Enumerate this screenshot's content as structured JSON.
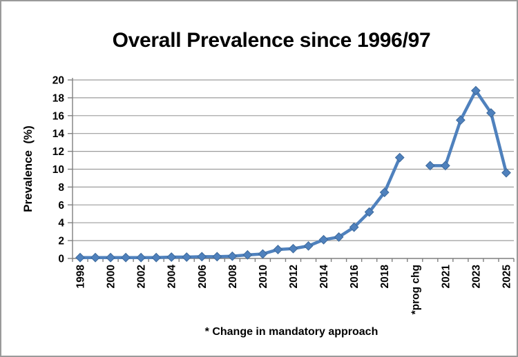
{
  "frame": {
    "background": "#ffffff",
    "border_color": "#9a9a9a"
  },
  "chart_data": {
    "type": "line",
    "title": "Overall Prevalence since 1996/97",
    "ylabel": "Prevalence  (%)",
    "xlabel": "",
    "footnote": "* Change in mandatory approach",
    "ylim": [
      0,
      20
    ],
    "ytick_step": 2,
    "ytick_labels": [
      "0",
      "2",
      "4",
      "6",
      "8",
      "10",
      "12",
      "14",
      "16",
      "18",
      "20"
    ],
    "grid": true,
    "legend": "none",
    "label_interval": 2,
    "categories": [
      "1998",
      "1999",
      "2000",
      "2001",
      "2002",
      "2003",
      "2004",
      "2005",
      "2006",
      "2007",
      "2008",
      "2009",
      "2010",
      "2011",
      "2012",
      "2013",
      "2014",
      "2015",
      "2016",
      "2017",
      "2018",
      "2019",
      "*prog chg",
      "2020",
      "2021",
      "2022",
      "2023",
      "2024",
      "2025"
    ],
    "visible_x_labels": [
      "1998",
      "2000",
      "2002",
      "2004",
      "2006",
      "2008",
      "2010",
      "2012",
      "2014",
      "2016",
      "2018",
      "*prog chg",
      "2021",
      "2023",
      "2025"
    ],
    "series": [
      {
        "name": "Overall prevalence (%)",
        "color": "#4F81BD",
        "marker": "diamond",
        "values": [
          0.1,
          0.1,
          0.1,
          0.1,
          0.1,
          0.1,
          0.15,
          0.15,
          0.2,
          0.2,
          0.25,
          0.4,
          0.5,
          1.0,
          1.1,
          1.4,
          2.1,
          2.4,
          3.5,
          5.2,
          7.4,
          11.3,
          null,
          10.4,
          10.4,
          15.5,
          18.8,
          16.3,
          9.6
        ]
      }
    ],
    "colors": {
      "line": "#4F81BD",
      "marker_edge": "#3C699B",
      "gridline": "#9C9C9C",
      "axis": "#7F7F7F",
      "text": "#000000"
    }
  }
}
